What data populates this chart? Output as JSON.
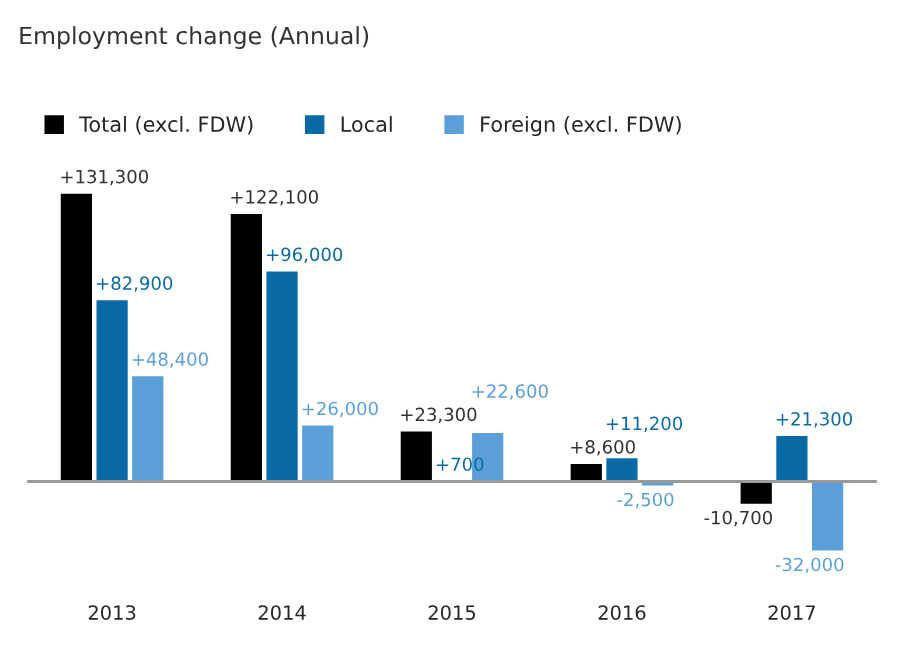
{
  "chart_data": {
    "type": "bar",
    "title": "Employment change (Annual)",
    "categories": [
      "2013",
      "2014",
      "2015",
      "2016",
      "2017"
    ],
    "series": [
      {
        "name": "Total (excl. FDW)",
        "color": "#000000",
        "values": [
          131300,
          122100,
          23300,
          8600,
          -10700
        ],
        "value_labels": [
          "+131,300",
          "+122,100",
          "+23,300",
          "+8,600",
          "-10,700"
        ]
      },
      {
        "name": "Local",
        "color": "#0a6aa6",
        "values": [
          82900,
          96000,
          700,
          11200,
          21300
        ],
        "value_labels": [
          "+82,900",
          "+96,000",
          "+700",
          "+11,200",
          "+21,300"
        ]
      },
      {
        "name": "Foreign (excl. FDW)",
        "color": "#5a9fd8",
        "values": [
          48400,
          26000,
          22600,
          -2500,
          -32000
        ],
        "value_labels": [
          "+48,400",
          "+26,000",
          "+22,600",
          "-2,500",
          "-32,000"
        ]
      }
    ],
    "ref_lines": [
      {
        "axis": "y",
        "value": 0,
        "color": "#999999"
      }
    ],
    "legend": "top left",
    "grid": false
  }
}
